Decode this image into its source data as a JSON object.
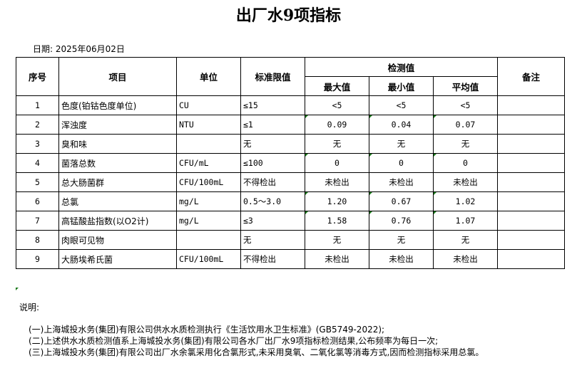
{
  "title": "出厂水9项指标",
  "date": "日期: 2025年06月02日",
  "headers": {
    "no": "序号",
    "item": "项目",
    "unit": "单位",
    "limit": "标准限值",
    "measured": "检测值",
    "max": "最大值",
    "min": "最小值",
    "avg": "平均值",
    "remark": "备注"
  },
  "rows": [
    {
      "no": "1",
      "item": "色度(铂钴色度单位)",
      "unit": "CU",
      "limit": "≤15",
      "max": "<5",
      "min": "<5",
      "avg": "<5"
    },
    {
      "no": "2",
      "item": "浑浊度",
      "unit": "NTU",
      "limit": "≤1",
      "max": "0.09",
      "min": "0.04",
      "avg": "0.07"
    },
    {
      "no": "3",
      "item": "臭和味",
      "unit": "",
      "limit": "无",
      "max": "无",
      "min": "无",
      "avg": "无"
    },
    {
      "no": "4",
      "item": "菌落总数",
      "unit": "CFU/mL",
      "limit": "≤100",
      "max": "0",
      "min": "0",
      "avg": "0"
    },
    {
      "no": "5",
      "item": "总大肠菌群",
      "unit": "CFU/100mL",
      "limit": "不得检出",
      "max": "未检出",
      "min": "未检出",
      "avg": "未检出"
    },
    {
      "no": "6",
      "item": "总氯",
      "unit": "mg/L",
      "limit": "0.5～3.0",
      "max": "1.20",
      "min": "0.67",
      "avg": "1.02"
    },
    {
      "no": "7",
      "item": "高锰酸盐指数(以O2计)",
      "unit": "mg/L",
      "limit": "≤3",
      "max": "1.58",
      "min": "0.76",
      "avg": "1.07"
    },
    {
      "no": "8",
      "item": "肉眼可见物",
      "unit": "",
      "limit": "无",
      "max": "无",
      "min": "无",
      "avg": "无"
    },
    {
      "no": "9",
      "item": "大肠埃希氏菌",
      "unit": "CFU/100mL",
      "limit": "不得检出",
      "max": "未检出",
      "min": "未检出",
      "avg": "未检出"
    }
  ],
  "notes_heading": "说明:",
  "notes": [
    "(一)上海城投水务(集团)有限公司供水水质检测执行《生活饮用水卫生标准》(GB5749-2022);",
    "(二)上述供水水质检测值系上海城投水务(集团)有限公司各水厂出厂水9项指标检测结果,公布频率为每日一次;",
    "(三)上海城投水务(集团)有限公司出厂水余氯采用化合氯形式,未采用臭氧、二氧化氯等消毒方式,因而检测指标采用总氯。"
  ]
}
